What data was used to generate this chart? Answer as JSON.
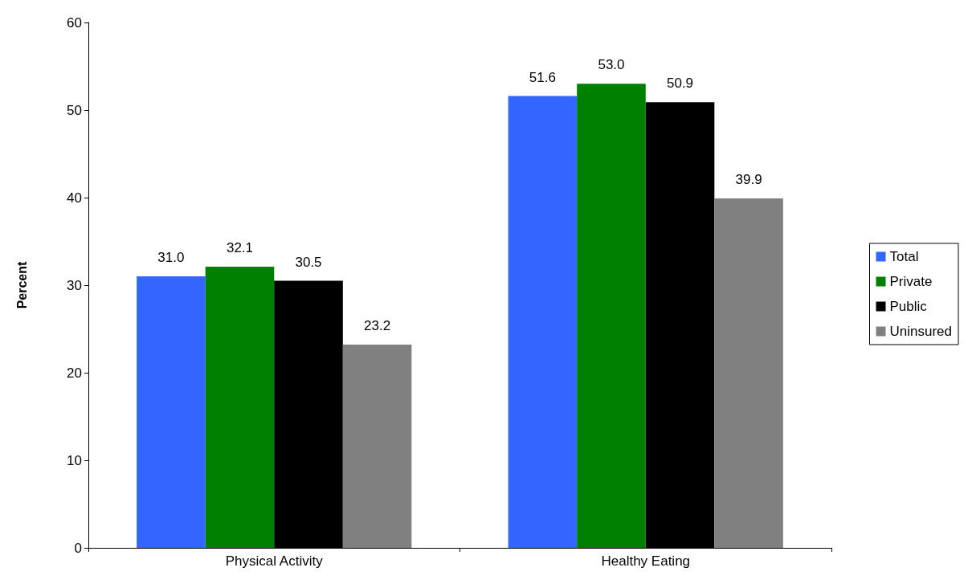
{
  "chart_data": {
    "type": "bar",
    "ylabel": "Percent",
    "categories": [
      "Physical Activity",
      "Healthy Eating"
    ],
    "series": [
      {
        "name": "Total",
        "color": "#3366ff",
        "values": [
          31.0,
          51.6
        ],
        "value_labels": [
          "31.0",
          "51.6"
        ]
      },
      {
        "name": "Private",
        "color": "#008000",
        "values": [
          32.1,
          53.0
        ],
        "value_labels": [
          "32.1",
          "53.0"
        ]
      },
      {
        "name": "Public",
        "color": "#000000",
        "values": [
          30.5,
          50.9
        ],
        "value_labels": [
          "30.5",
          "50.9"
        ]
      },
      {
        "name": "Uninsured",
        "color": "#808080",
        "values": [
          23.2,
          39.9
        ],
        "value_labels": [
          "23.2",
          "39.9"
        ]
      }
    ],
    "ylim": [
      0,
      60
    ],
    "yticks": [
      0,
      10,
      20,
      30,
      40,
      50,
      60
    ],
    "grid": false,
    "legend": "right"
  }
}
